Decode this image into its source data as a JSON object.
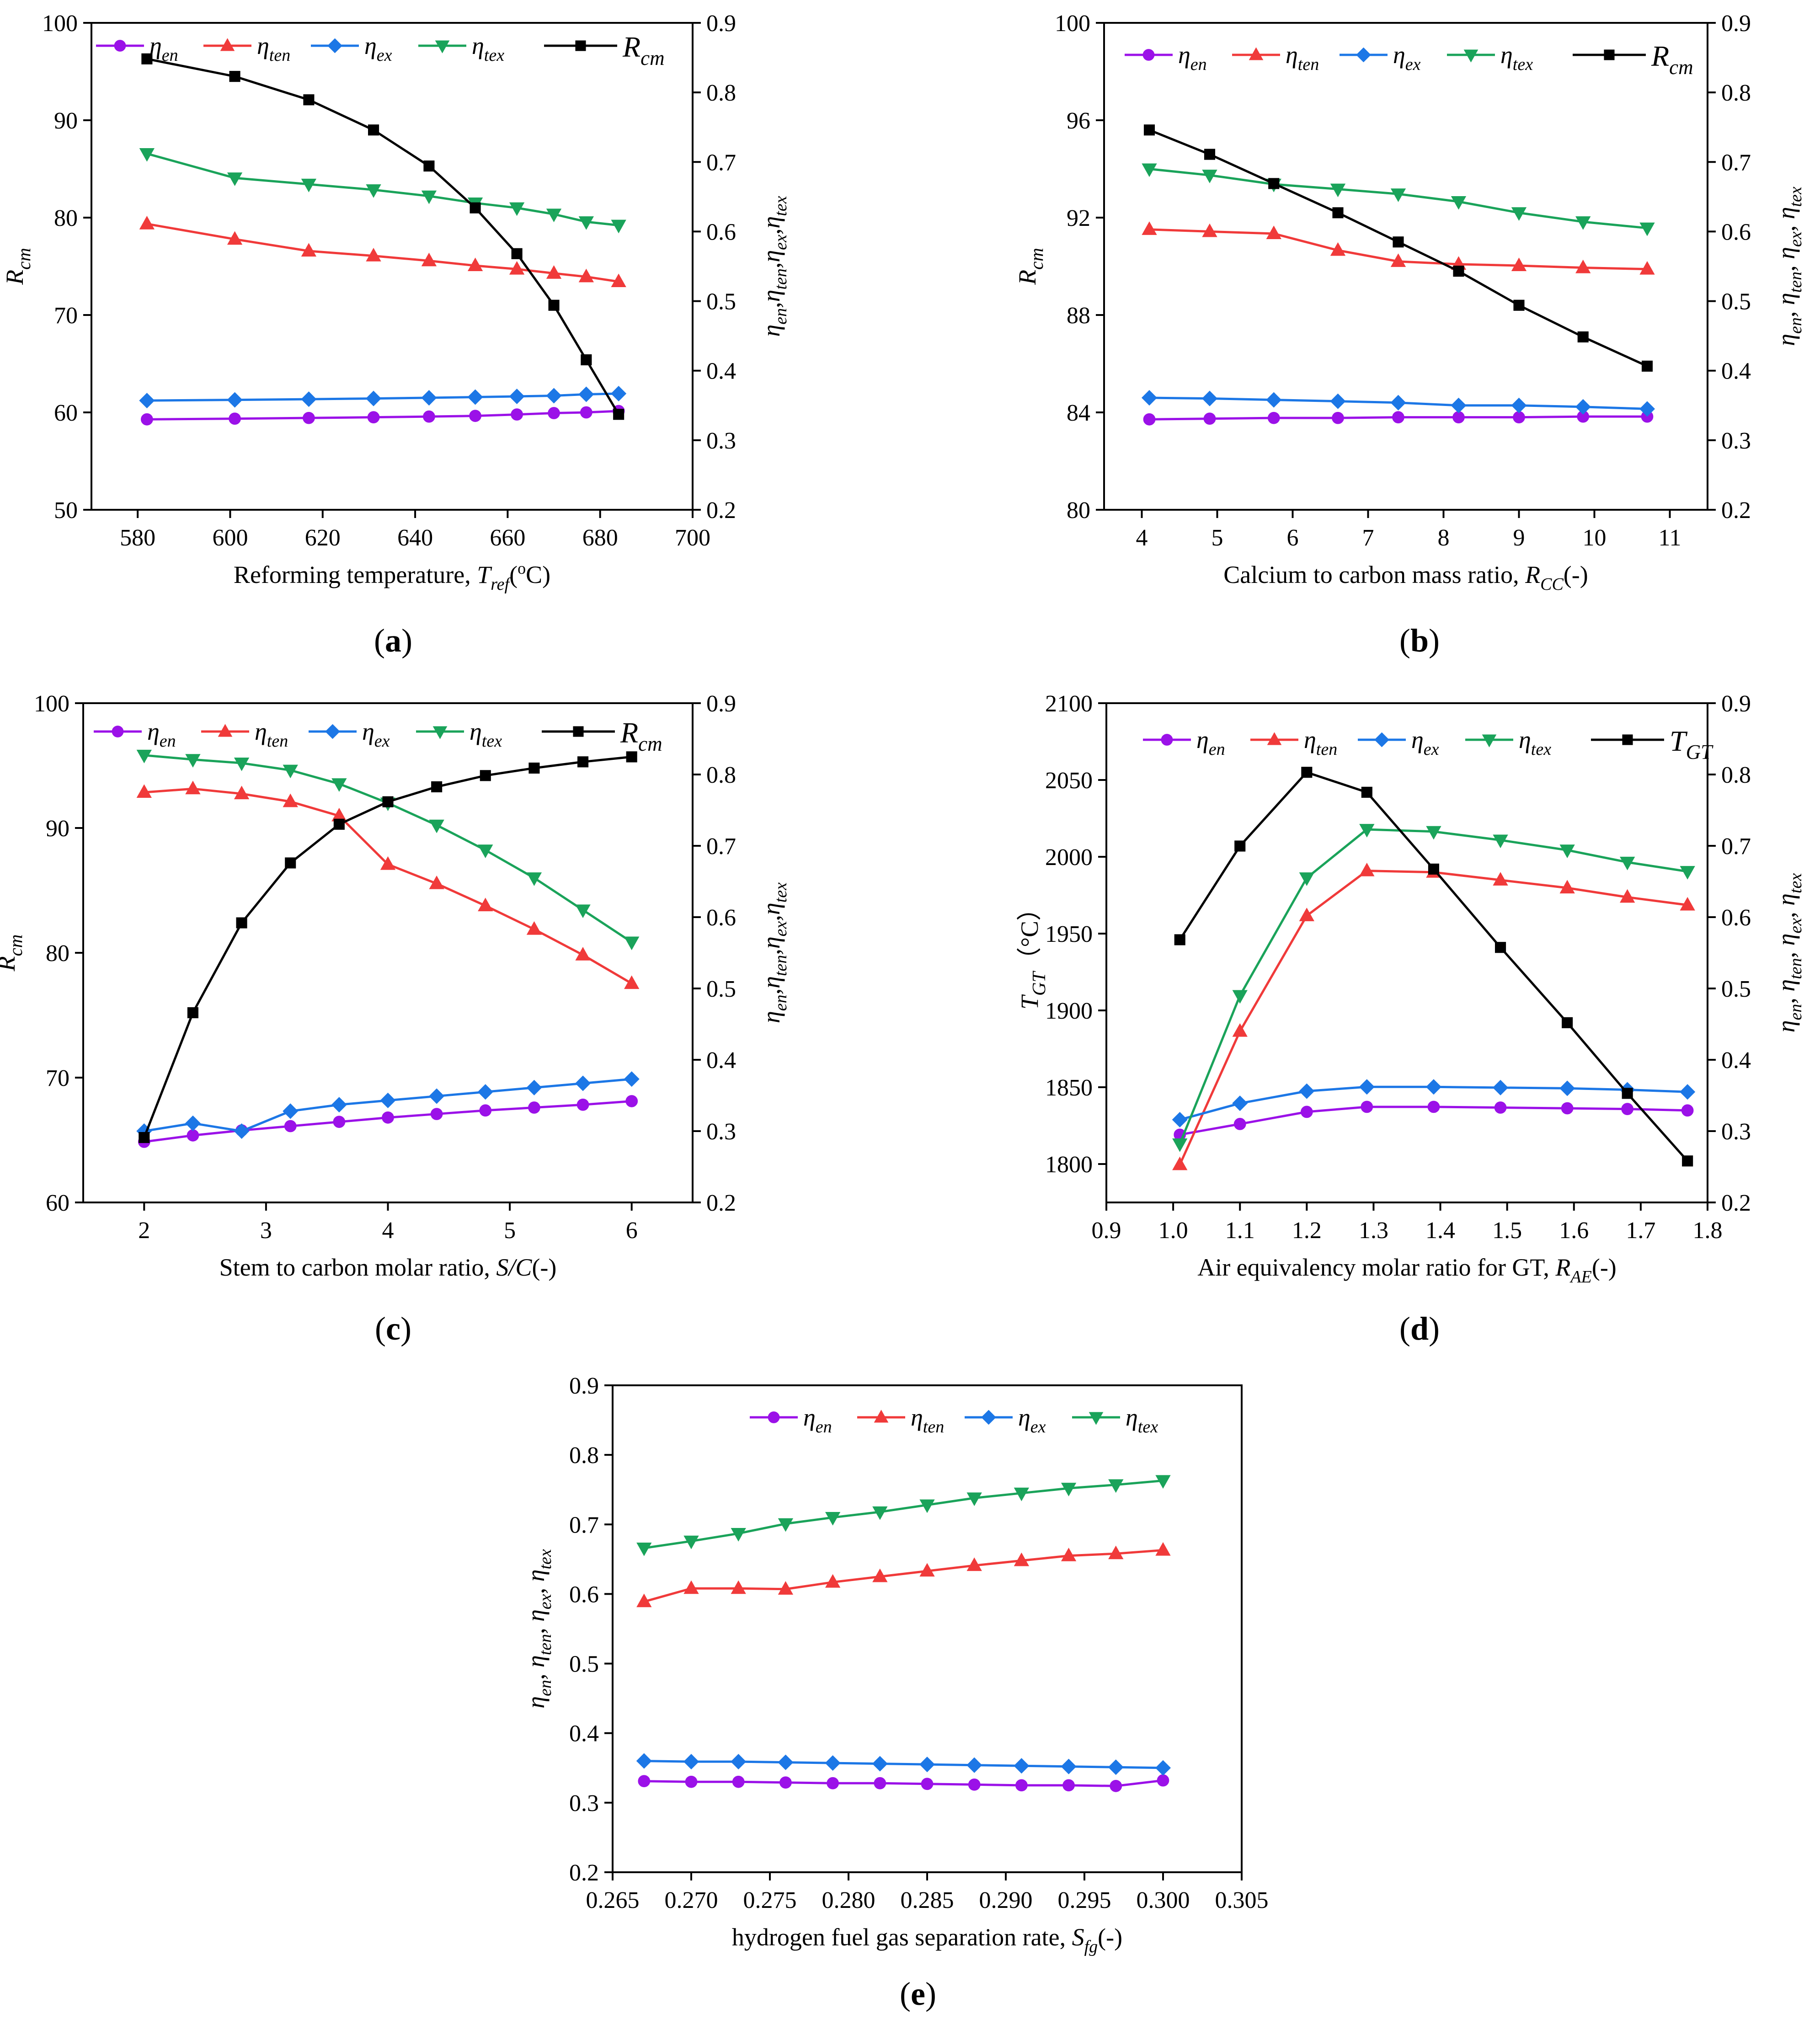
{
  "colors": {
    "eta_en": "#9b11e8",
    "eta_ten": "#f03a3a",
    "eta_ex": "#1c77e6",
    "eta_tex": "#1aa35a",
    "primary": "#000000"
  },
  "legend_names": {
    "eta_en": {
      "base": "η",
      "sub": "en"
    },
    "eta_ten": {
      "base": "η",
      "sub": "ten"
    },
    "eta_ex": {
      "base": "η",
      "sub": "ex"
    },
    "eta_tex": {
      "base": "η",
      "sub": "tex"
    },
    "R_cm": {
      "base": "R",
      "sub": "cm"
    },
    "T_GT": {
      "base": "T",
      "sub": "GT"
    }
  },
  "chart_data": [
    {
      "id": "a",
      "type": "line",
      "panel_label": "a",
      "xlabel": {
        "text": "Reforming temperature, ",
        "sym": "T",
        "sub": "ref",
        "unit_pre": "(",
        "unit_sup": "o",
        "unit_post": "C)"
      },
      "ylabel_left": {
        "sym": "R",
        "sub": "cm"
      },
      "ylabel_right": {
        "parts": [
          {
            "sym": "η",
            "sub": "en"
          },
          {
            "sym": "η",
            "sub": "ten"
          },
          {
            "sym": "η",
            "sub": "ex"
          },
          {
            "sym": "η",
            "sub": "tex"
          }
        ],
        "sep": ","
      },
      "xlim": [
        570,
        700
      ],
      "xticks": [
        "580",
        "600",
        "620",
        "640",
        "660",
        "680",
        "700"
      ],
      "ylim_left": [
        50,
        100
      ],
      "yticks_left": [
        "50",
        "60",
        "70",
        "80",
        "90",
        "100"
      ],
      "ylim_right": [
        0.2,
        0.9
      ],
      "yticks_right": [
        "0.2",
        "0.3",
        "0.4",
        "0.5",
        "0.6",
        "0.7",
        "0.8",
        "0.9"
      ],
      "x": [
        582,
        601,
        617,
        631,
        643,
        653,
        662,
        670,
        677,
        684
      ],
      "series": [
        {
          "key": "eta_en",
          "axis": "right",
          "marker": "circle",
          "values": [
            0.33,
            0.331,
            0.332,
            0.333,
            0.334,
            0.335,
            0.337,
            0.339,
            0.34,
            0.342
          ]
        },
        {
          "key": "eta_ten",
          "axis": "right",
          "marker": "triangle-up",
          "values": [
            0.611,
            0.589,
            0.572,
            0.565,
            0.558,
            0.551,
            0.546,
            0.54,
            0.535,
            0.528
          ]
        },
        {
          "key": "eta_ex",
          "axis": "right",
          "marker": "diamond",
          "values": [
            0.357,
            0.358,
            0.359,
            0.36,
            0.361,
            0.362,
            0.363,
            0.364,
            0.366,
            0.367
          ]
        },
        {
          "key": "eta_tex",
          "axis": "right",
          "marker": "triangle-down",
          "values": [
            0.712,
            0.677,
            0.668,
            0.66,
            0.651,
            0.641,
            0.634,
            0.625,
            0.614,
            0.609
          ]
        },
        {
          "key": "R_cm",
          "axis": "left",
          "marker": "square",
          "values": [
            96.3,
            94.5,
            92.1,
            89.0,
            85.3,
            81.0,
            76.3,
            71.0,
            65.4,
            59.8
          ]
        }
      ],
      "legend": [
        "eta_en",
        "eta_ten",
        "eta_ex",
        "eta_tex",
        "R_cm"
      ]
    },
    {
      "id": "b",
      "type": "line",
      "panel_label": "b",
      "xlabel": {
        "text": "Calcium to carbon mass ratio, ",
        "sym": "R",
        "sub": "CC",
        "unit_pre": "(-)",
        "unit_sup": "",
        "unit_post": ""
      },
      "ylabel_left": {
        "sym": "R",
        "sub": "cm"
      },
      "ylabel_right": {
        "parts": [
          {
            "sym": "η",
            "sub": "en"
          },
          {
            "sym": "η",
            "sub": "ten"
          },
          {
            "sym": "η",
            "sub": "ex"
          },
          {
            "sym": "η",
            "sub": "tex"
          }
        ],
        "sep": ", "
      },
      "xlim": [
        3.5,
        11.5
      ],
      "xticks": [
        "4",
        "5",
        "6",
        "7",
        "8",
        "9",
        "10",
        "11"
      ],
      "ylim_left": [
        80,
        100
      ],
      "yticks_left": [
        "80",
        "84",
        "88",
        "92",
        "96",
        "100"
      ],
      "ylim_right": [
        0.2,
        0.9
      ],
      "yticks_right": [
        "0.2",
        "0.3",
        "0.4",
        "0.5",
        "0.6",
        "0.7",
        "0.8",
        "0.9"
      ],
      "x": [
        4.1,
        4.9,
        5.75,
        6.6,
        7.4,
        8.2,
        9.0,
        9.85,
        10.7
      ],
      "series": [
        {
          "key": "eta_en",
          "axis": "right",
          "marker": "circle",
          "values": [
            0.33,
            0.331,
            0.332,
            0.332,
            0.333,
            0.333,
            0.333,
            0.334,
            0.334
          ]
        },
        {
          "key": "eta_ten",
          "axis": "right",
          "marker": "triangle-up",
          "values": [
            0.603,
            0.6,
            0.597,
            0.573,
            0.557,
            0.553,
            0.551,
            0.548,
            0.546
          ]
        },
        {
          "key": "eta_ex",
          "axis": "right",
          "marker": "diamond",
          "values": [
            0.361,
            0.36,
            0.358,
            0.356,
            0.354,
            0.35,
            0.35,
            0.348,
            0.345
          ]
        },
        {
          "key": "eta_tex",
          "axis": "right",
          "marker": "triangle-down",
          "values": [
            0.69,
            0.681,
            0.668,
            0.661,
            0.654,
            0.643,
            0.627,
            0.614,
            0.605
          ]
        },
        {
          "key": "R_cm",
          "axis": "left",
          "marker": "square",
          "values": [
            95.6,
            94.6,
            93.4,
            92.2,
            91.0,
            89.8,
            88.4,
            87.1,
            85.9
          ]
        }
      ],
      "legend": [
        "eta_en",
        "eta_ten",
        "eta_ex",
        "eta_tex",
        "R_cm"
      ]
    },
    {
      "id": "c",
      "type": "line",
      "panel_label": "c",
      "xlabel": {
        "text": "Stem to carbon molar ratio, ",
        "sym": "S/C",
        "sub": "",
        "unit_pre": "(-)",
        "unit_sup": "",
        "unit_post": ""
      },
      "ylabel_left": {
        "sym": "R",
        "sub": "cm"
      },
      "ylabel_right": {
        "parts": [
          {
            "sym": "η",
            "sub": "en"
          },
          {
            "sym": "η",
            "sub": "ten"
          },
          {
            "sym": "η",
            "sub": "ex"
          },
          {
            "sym": "η",
            "sub": "tex"
          }
        ],
        "sep": ","
      },
      "xlim": [
        1.5,
        6.5
      ],
      "xticks": [
        "2",
        "3",
        "4",
        "5",
        "6"
      ],
      "ylim_left": [
        60,
        100
      ],
      "yticks_left": [
        "60",
        "70",
        "80",
        "90",
        "100"
      ],
      "ylim_right": [
        0.2,
        0.9
      ],
      "yticks_right": [
        "0.2",
        "0.3",
        "0.4",
        "0.5",
        "0.6",
        "0.7",
        "0.8",
        "0.9"
      ],
      "x": [
        2.0,
        2.4,
        2.8,
        3.2,
        3.6,
        4.0,
        4.4,
        4.8,
        5.2,
        5.6,
        6.0
      ],
      "series": [
        {
          "key": "eta_en",
          "axis": "right",
          "marker": "circle",
          "values": [
            0.285,
            0.294,
            0.301,
            0.307,
            0.313,
            0.319,
            0.324,
            0.329,
            0.333,
            0.337,
            0.342
          ]
        },
        {
          "key": "eta_ten",
          "axis": "right",
          "marker": "triangle-up",
          "values": [
            0.775,
            0.78,
            0.773,
            0.762,
            0.742,
            0.674,
            0.647,
            0.616,
            0.583,
            0.547,
            0.507
          ]
        },
        {
          "key": "eta_ex",
          "axis": "right",
          "marker": "diamond",
          "values": [
            0.3,
            0.311,
            0.3,
            0.328,
            0.337,
            0.343,
            0.349,
            0.355,
            0.361,
            0.367,
            0.373
          ]
        },
        {
          "key": "eta_tex",
          "axis": "right",
          "marker": "triangle-down",
          "values": [
            0.827,
            0.821,
            0.816,
            0.806,
            0.787,
            0.76,
            0.729,
            0.694,
            0.655,
            0.61,
            0.565
          ]
        },
        {
          "key": "R_cm",
          "axis": "left",
          "marker": "square",
          "values": [
            65.2,
            75.2,
            82.4,
            87.2,
            90.3,
            92.1,
            93.3,
            94.2,
            94.8,
            95.3,
            95.7
          ]
        }
      ],
      "legend": [
        "eta_en",
        "eta_ten",
        "eta_ex",
        "eta_tex",
        "R_cm"
      ]
    },
    {
      "id": "d",
      "type": "line",
      "panel_label": "d",
      "xlabel": {
        "text": "Air equivalency molar ratio for GT, ",
        "sym": "R",
        "sub": "AE",
        "unit_pre": "(-)",
        "unit_sup": "",
        "unit_post": ""
      },
      "ylabel_left": {
        "sym": "T",
        "sub": "GT",
        "unit": "（°C）"
      },
      "ylabel_right": {
        "parts": [
          {
            "sym": "η",
            "sub": "en"
          },
          {
            "sym": "η",
            "sub": "ten"
          },
          {
            "sym": "η",
            "sub": "ex"
          },
          {
            "sym": "η",
            "sub": "tex"
          }
        ],
        "sep": ", "
      },
      "xlim": [
        0.9,
        1.8
      ],
      "xticks": [
        "0.9",
        "1.0",
        "1.1",
        "1.2",
        "1.3",
        "1.4",
        "1.5",
        "1.6",
        "1.7",
        "1.8"
      ],
      "ylim_left": [
        1775,
        2100
      ],
      "yticks_left": [
        "1800",
        "1850",
        "1900",
        "1950",
        "2000",
        "2050",
        "2100"
      ],
      "ylim_right": [
        0.2,
        0.9
      ],
      "yticks_right": [
        "0.2",
        "0.3",
        "0.4",
        "0.5",
        "0.6",
        "0.7",
        "0.8",
        "0.9"
      ],
      "x": [
        1.01,
        1.1,
        1.2,
        1.29,
        1.39,
        1.49,
        1.59,
        1.68,
        1.77
      ],
      "series": [
        {
          "key": "eta_en",
          "axis": "right",
          "marker": "circle",
          "values": [
            0.295,
            0.31,
            0.327,
            0.334,
            0.334,
            0.333,
            0.332,
            0.331,
            0.329
          ]
        },
        {
          "key": "eta_ten",
          "axis": "right",
          "marker": "triangle-up",
          "values": [
            0.253,
            0.44,
            0.602,
            0.665,
            0.663,
            0.652,
            0.641,
            0.628,
            0.617
          ]
        },
        {
          "key": "eta_ex",
          "axis": "right",
          "marker": "diamond",
          "values": [
            0.316,
            0.339,
            0.356,
            0.362,
            0.362,
            0.361,
            0.36,
            0.358,
            0.355
          ]
        },
        {
          "key": "eta_tex",
          "axis": "right",
          "marker": "triangle-down",
          "values": [
            0.282,
            0.49,
            0.655,
            0.723,
            0.72,
            0.708,
            0.694,
            0.677,
            0.664
          ]
        },
        {
          "key": "T_GT",
          "axis": "left",
          "marker": "square",
          "values": [
            1946,
            2007,
            2055,
            2042,
            1992,
            1941,
            1892,
            1846,
            1802
          ]
        }
      ],
      "legend": [
        "eta_en",
        "eta_ten",
        "eta_ex",
        "eta_tex",
        "T_GT"
      ]
    },
    {
      "id": "e",
      "type": "line",
      "panel_label": "e",
      "xlabel": {
        "text": "hydrogen fuel gas separation rate, ",
        "sym": "S",
        "sub": "fg",
        "unit_pre": "(-)",
        "unit_sup": "",
        "unit_post": ""
      },
      "ylabel_left": {
        "parts": [
          {
            "sym": "η",
            "sub": "en"
          },
          {
            "sym": "η",
            "sub": "ten"
          },
          {
            "sym": "η",
            "sub": "ex"
          },
          {
            "sym": "η",
            "sub": "tex"
          }
        ],
        "sep": ", "
      },
      "xlim": [
        0.265,
        0.305
      ],
      "xticks": [
        "0.265",
        "0.270",
        "0.275",
        "0.280",
        "0.285",
        "0.290",
        "0.295",
        "0.300",
        "0.305"
      ],
      "ylim_left": [
        0.2,
        0.9
      ],
      "yticks_left": [
        "0.2",
        "0.3",
        "0.4",
        "0.5",
        "0.6",
        "0.7",
        "0.8",
        "0.9"
      ],
      "x": [
        0.267,
        0.27,
        0.273,
        0.276,
        0.279,
        0.282,
        0.285,
        0.288,
        0.291,
        0.294,
        0.297,
        0.3
      ],
      "series": [
        {
          "key": "eta_en",
          "axis": "left",
          "marker": "circle",
          "values": [
            0.331,
            0.33,
            0.33,
            0.329,
            0.328,
            0.328,
            0.327,
            0.326,
            0.325,
            0.325,
            0.324,
            0.332
          ]
        },
        {
          "key": "eta_ten",
          "axis": "left",
          "marker": "triangle-up",
          "values": [
            0.589,
            0.608,
            0.608,
            0.607,
            0.617,
            0.625,
            0.633,
            0.641,
            0.648,
            0.655,
            0.658,
            0.663
          ]
        },
        {
          "key": "eta_ex",
          "axis": "left",
          "marker": "diamond",
          "values": [
            0.36,
            0.359,
            0.359,
            0.358,
            0.357,
            0.356,
            0.355,
            0.354,
            0.353,
            0.352,
            0.351,
            0.35
          ]
        },
        {
          "key": "eta_tex",
          "axis": "left",
          "marker": "triangle-down",
          "values": [
            0.666,
            0.676,
            0.687,
            0.701,
            0.71,
            0.718,
            0.728,
            0.738,
            0.745,
            0.752,
            0.757,
            0.763
          ]
        }
      ],
      "legend": [
        "eta_en",
        "eta_ten",
        "eta_ex",
        "eta_tex"
      ]
    }
  ]
}
